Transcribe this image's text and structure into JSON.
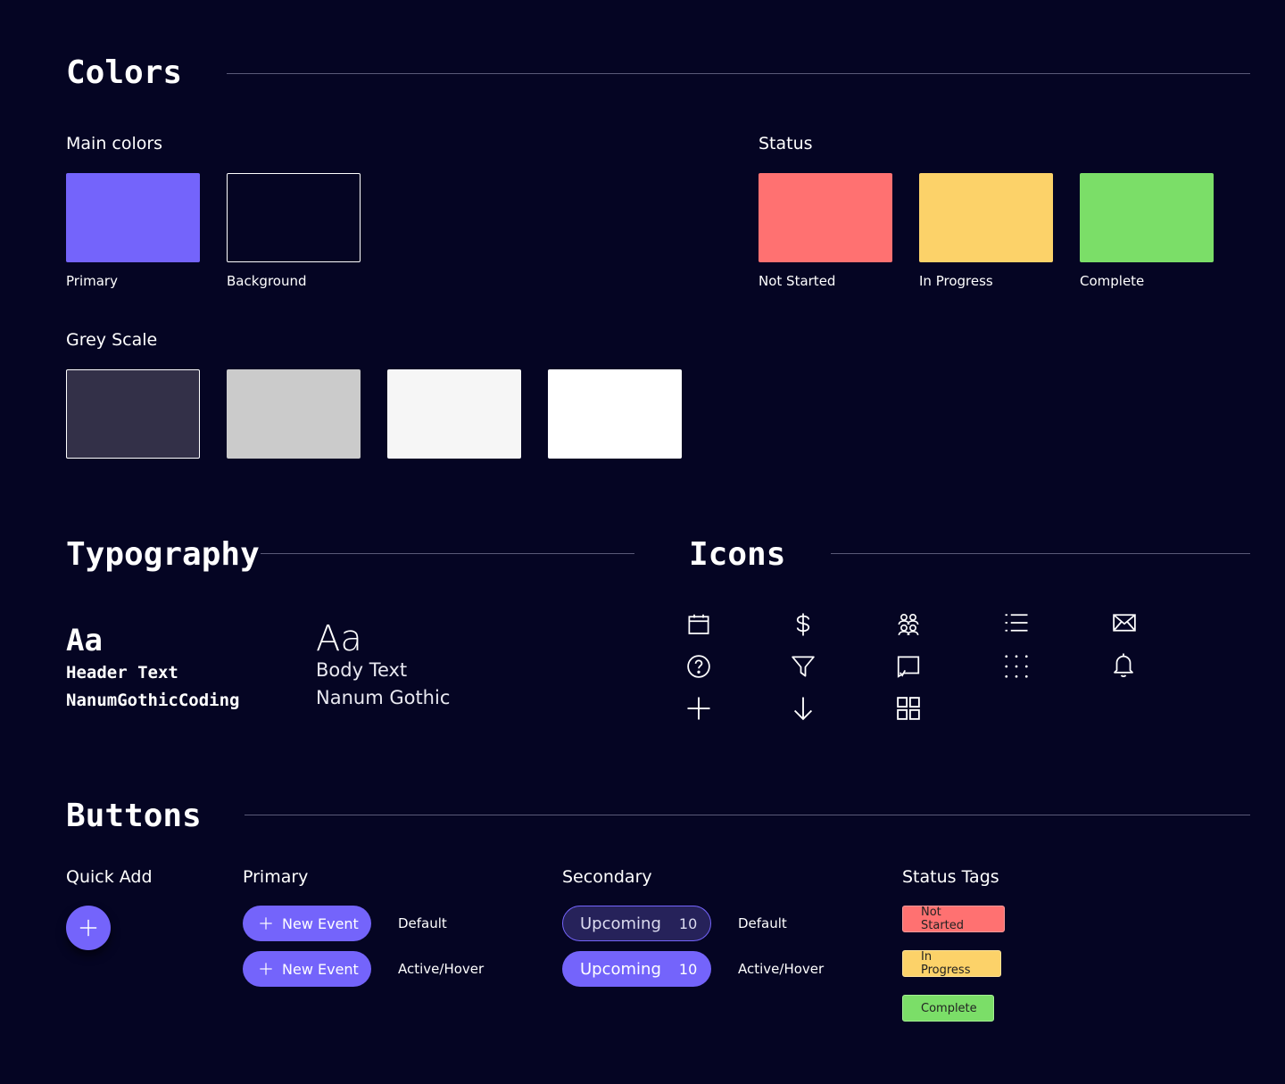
{
  "colors": {
    "title": "Colors",
    "main_label": "Main colors",
    "status_label": "Status",
    "grey_label": "Grey Scale",
    "main": [
      {
        "label": "Primary",
        "hex": "#7464FB"
      },
      {
        "label": "Background",
        "hex": "#050523"
      }
    ],
    "status": [
      {
        "label": "Not Started",
        "hex": "#FF7171"
      },
      {
        "label": "In Progress",
        "hex": "#FCD269"
      },
      {
        "label": "Complete",
        "hex": "#7BDE68"
      }
    ],
    "grey": [
      "#333048",
      "#CBCBCB",
      "#F6F6F6",
      "#FFFFFF"
    ]
  },
  "typography": {
    "title": "Typography",
    "header_sample": "Aa",
    "header_name": "Header Text",
    "header_font": "NanumGothicCoding",
    "body_sample": "Aa",
    "body_name": "Body Text",
    "body_font": "Nanum Gothic"
  },
  "icons": {
    "title": "Icons",
    "items": [
      "calendar-icon",
      "dollar-icon",
      "people-icon",
      "list-icon",
      "mail-icon",
      "help-icon",
      "filter-icon",
      "chat-icon",
      "dot-grid-icon",
      "bell-icon",
      "plus-icon",
      "arrow-down-icon",
      "grid-icon"
    ]
  },
  "buttons": {
    "title": "Buttons",
    "quick_add_label": "Quick Add",
    "primary_label": "Primary",
    "secondary_label": "Secondary",
    "status_tags_label": "Status Tags",
    "new_event": "New Event",
    "plus_glyph": "+",
    "upcoming": "Upcoming",
    "upcoming_count": "10",
    "state_default": "Default",
    "state_active": "Active/Hover",
    "tags": [
      "Not Started",
      "In Progress",
      "Complete"
    ]
  }
}
